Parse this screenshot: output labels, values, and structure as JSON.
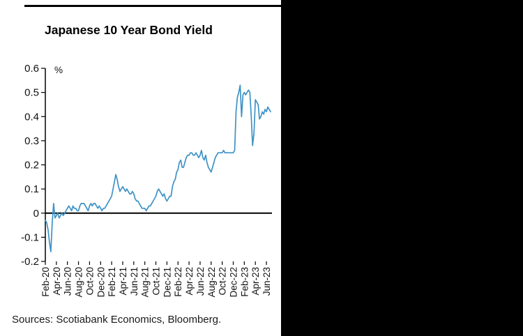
{
  "page": {
    "background_color": "#ffffff",
    "side_panel_color": "#000000"
  },
  "chart": {
    "title": "Japanese 10 Year Bond Yield",
    "unit_label": "%",
    "source_note": "Sources: Scotiabank Economics, Bloomberg.",
    "line_color": "#3E92C6"
  },
  "chart_data": {
    "type": "line",
    "title": "Japanese 10 Year Bond Yield",
    "xlabel": "",
    "ylabel": "%",
    "ylim": [
      -0.2,
      0.6
    ],
    "grid": false,
    "legend": "none",
    "y_tick_labels": [
      "0.6",
      "0.5",
      "0.4",
      "0.3",
      "0.2",
      "0.1",
      "0",
      "-0.1",
      "-0.2"
    ],
    "x_tick_labels": [
      "Feb-20",
      "Apr-20",
      "Jun-20",
      "Aug-20",
      "Oct-20",
      "Dec-20",
      "Feb-21",
      "Apr-21",
      "Jun-21",
      "Aug-21",
      "Oct-21",
      "Dec-21",
      "Feb-22",
      "Apr-22",
      "Jun-22",
      "Aug-22",
      "Oct-22",
      "Dec-22",
      "Feb-23",
      "Apr-23",
      "Jun-23"
    ],
    "x_tick_month_index": [
      0,
      2,
      4,
      6,
      8,
      10,
      12,
      14,
      16,
      18,
      20,
      22,
      24,
      26,
      28,
      30,
      32,
      34,
      36,
      38,
      40
    ],
    "series": [
      {
        "name": "Japanese 10 Year Bond Yield (%)",
        "start_label": "Feb-20",
        "points_per_month": 4,
        "values": [
          -0.03,
          -0.04,
          -0.07,
          -0.12,
          -0.16,
          -0.04,
          0.04,
          -0.02,
          -0.01,
          0.0,
          -0.02,
          -0.01,
          0.0,
          -0.01,
          0.0,
          0.01,
          0.02,
          0.03,
          0.02,
          0.01,
          0.03,
          0.02,
          0.02,
          0.01,
          0.01,
          0.03,
          0.04,
          0.04,
          0.04,
          0.03,
          0.02,
          0.01,
          0.03,
          0.04,
          0.03,
          0.04,
          0.04,
          0.03,
          0.02,
          0.03,
          0.02,
          0.01,
          0.02,
          0.02,
          0.03,
          0.04,
          0.05,
          0.06,
          0.07,
          0.1,
          0.13,
          0.16,
          0.14,
          0.11,
          0.09,
          0.1,
          0.11,
          0.1,
          0.09,
          0.1,
          0.09,
          0.08,
          0.08,
          0.09,
          0.08,
          0.06,
          0.05,
          0.05,
          0.04,
          0.03,
          0.02,
          0.02,
          0.02,
          0.01,
          0.02,
          0.03,
          0.03,
          0.04,
          0.05,
          0.06,
          0.07,
          0.09,
          0.1,
          0.09,
          0.08,
          0.07,
          0.08,
          0.06,
          0.05,
          0.06,
          0.07,
          0.07,
          0.11,
          0.13,
          0.14,
          0.17,
          0.18,
          0.21,
          0.22,
          0.19,
          0.19,
          0.21,
          0.23,
          0.24,
          0.24,
          0.25,
          0.25,
          0.24,
          0.24,
          0.25,
          0.24,
          0.23,
          0.24,
          0.26,
          0.23,
          0.22,
          0.24,
          0.21,
          0.19,
          0.18,
          0.17,
          0.19,
          0.21,
          0.23,
          0.24,
          0.25,
          0.25,
          0.25,
          0.25,
          0.26,
          0.25,
          0.25,
          0.25,
          0.25,
          0.25,
          0.25,
          0.25,
          0.26,
          0.42,
          0.48,
          0.5,
          0.53,
          0.4,
          0.49,
          0.5,
          0.49,
          0.5,
          0.51,
          0.5,
          0.4,
          0.28,
          0.33,
          0.47,
          0.46,
          0.45,
          0.39,
          0.4,
          0.42,
          0.41,
          0.43,
          0.42,
          0.44,
          0.43,
          0.42
        ]
      }
    ]
  }
}
